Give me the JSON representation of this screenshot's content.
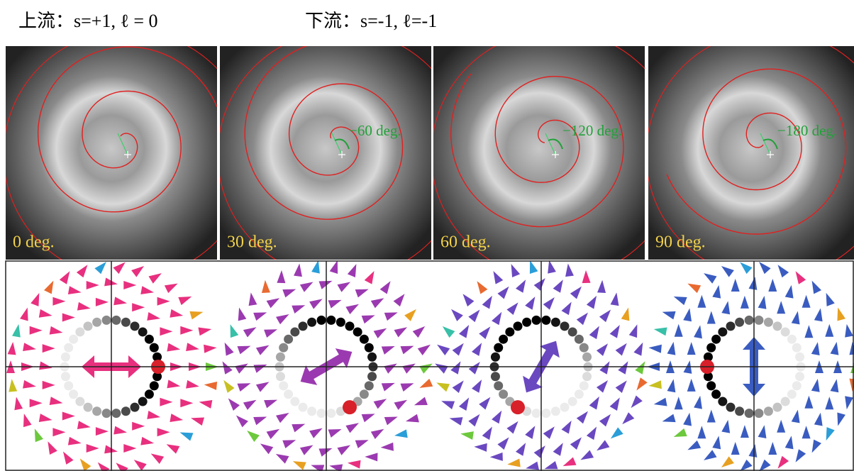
{
  "header": {
    "upstream": "上流：s=+1, ℓ = 0",
    "downstream": "下流：s=-1, ℓ=-1"
  },
  "panels": [
    {
      "label": "0 deg."
    },
    {
      "label": "30 deg.",
      "annotation": "−60 deg."
    },
    {
      "label": "60 deg.",
      "annotation": "−120 deg."
    },
    {
      "label": "90 deg.",
      "annotation": "−180 deg."
    }
  ]
}
